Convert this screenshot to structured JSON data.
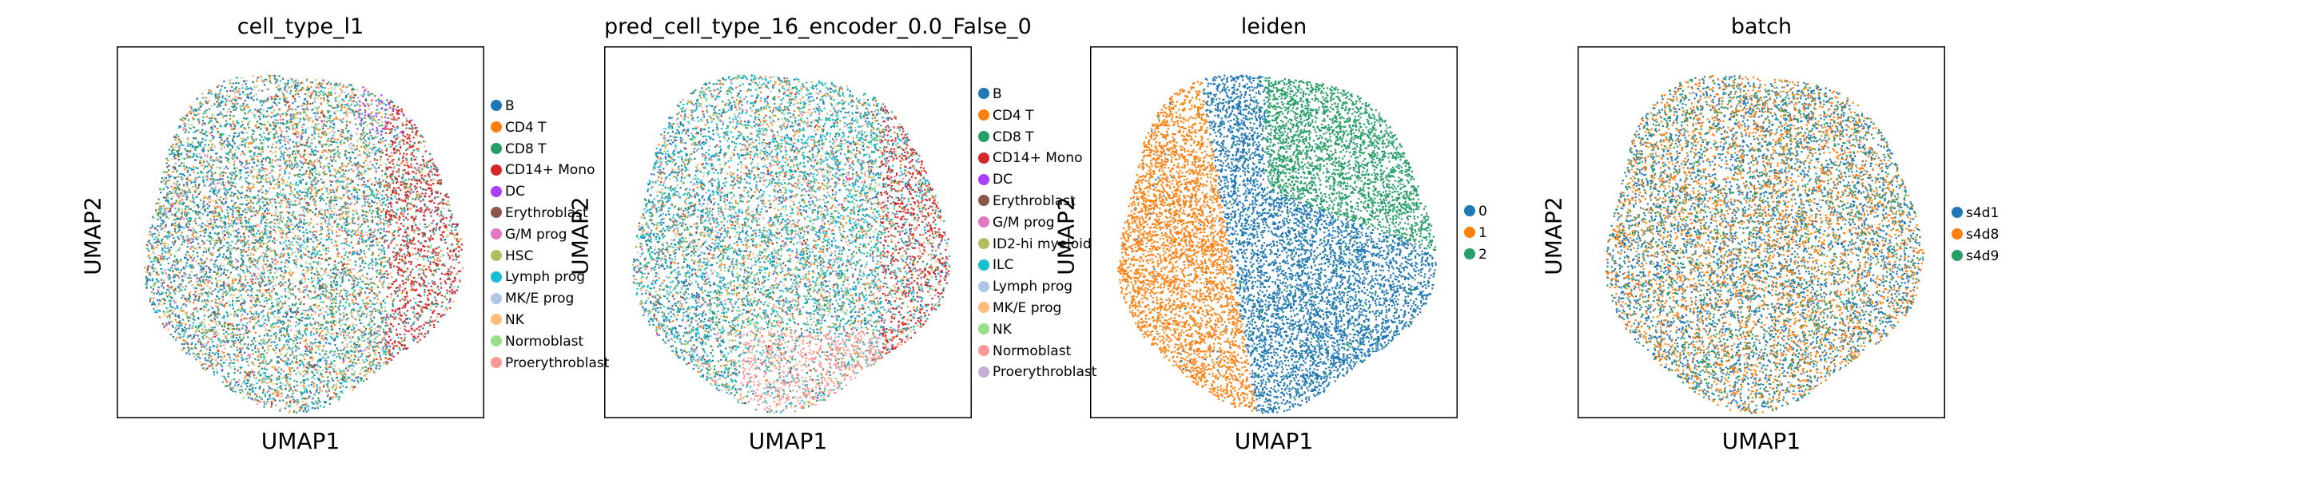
{
  "chart_data": [
    {
      "type": "scatter",
      "title": "cell_type_l1",
      "xlabel": "UMAP1",
      "ylabel": "UMAP2",
      "grid": false,
      "legend_placement": "right",
      "series": [
        {
          "name": "B",
          "color": "#1f77b4"
        },
        {
          "name": "CD4 T",
          "color": "#ff7f0e"
        },
        {
          "name": "CD8 T",
          "color": "#279e68"
        },
        {
          "name": "CD14+ Mono",
          "color": "#d62728"
        },
        {
          "name": "DC",
          "color": "#aa40fc"
        },
        {
          "name": "Erythroblast",
          "color": "#8c564b"
        },
        {
          "name": "G/M prog",
          "color": "#e377c2"
        },
        {
          "name": "HSC",
          "color": "#b5bd61"
        },
        {
          "name": "Lymph prog",
          "color": "#17becf"
        },
        {
          "name": "MK/E prog",
          "color": "#aec7e8"
        },
        {
          "name": "NK",
          "color": "#ffbb78"
        },
        {
          "name": "Normoblast",
          "color": "#98df8a"
        },
        {
          "name": "Proerythroblast",
          "color": "#ff9896"
        }
      ]
    },
    {
      "type": "scatter",
      "title": "pred_cell_type_16_encoder_0.0_False_0",
      "xlabel": "UMAP1",
      "ylabel": "UMAP2",
      "grid": false,
      "legend_placement": "right",
      "series": [
        {
          "name": "B",
          "color": "#1f77b4"
        },
        {
          "name": "CD4 T",
          "color": "#ff7f0e"
        },
        {
          "name": "CD8 T",
          "color": "#279e68"
        },
        {
          "name": "CD14+ Mono",
          "color": "#d62728"
        },
        {
          "name": "DC",
          "color": "#aa40fc"
        },
        {
          "name": "Erythroblast",
          "color": "#8c564b"
        },
        {
          "name": "G/M prog",
          "color": "#e377c2"
        },
        {
          "name": "ID2-hi myeloid",
          "color": "#b5bd61"
        },
        {
          "name": "ILC",
          "color": "#17becf"
        },
        {
          "name": "Lymph prog",
          "color": "#aec7e8"
        },
        {
          "name": "MK/E prog",
          "color": "#ffbb78"
        },
        {
          "name": "NK",
          "color": "#98df8a"
        },
        {
          "name": "Normoblast",
          "color": "#ff9896"
        },
        {
          "name": "Proerythroblast",
          "color": "#c5b0d5"
        }
      ]
    },
    {
      "type": "scatter",
      "title": "leiden",
      "xlabel": "UMAP1",
      "ylabel": "UMAP2",
      "grid": false,
      "legend_placement": "right",
      "series": [
        {
          "name": "0",
          "color": "#1f77b4"
        },
        {
          "name": "1",
          "color": "#ff7f0e"
        },
        {
          "name": "2",
          "color": "#279e68"
        }
      ]
    },
    {
      "type": "scatter",
      "title": "batch",
      "xlabel": "UMAP1",
      "ylabel": "UMAP2",
      "grid": false,
      "legend_placement": "right",
      "series": [
        {
          "name": "s4d1",
          "color": "#1f77b4"
        },
        {
          "name": "s4d8",
          "color": "#ff7f0e"
        },
        {
          "name": "s4d9",
          "color": "#279e68"
        }
      ]
    }
  ]
}
